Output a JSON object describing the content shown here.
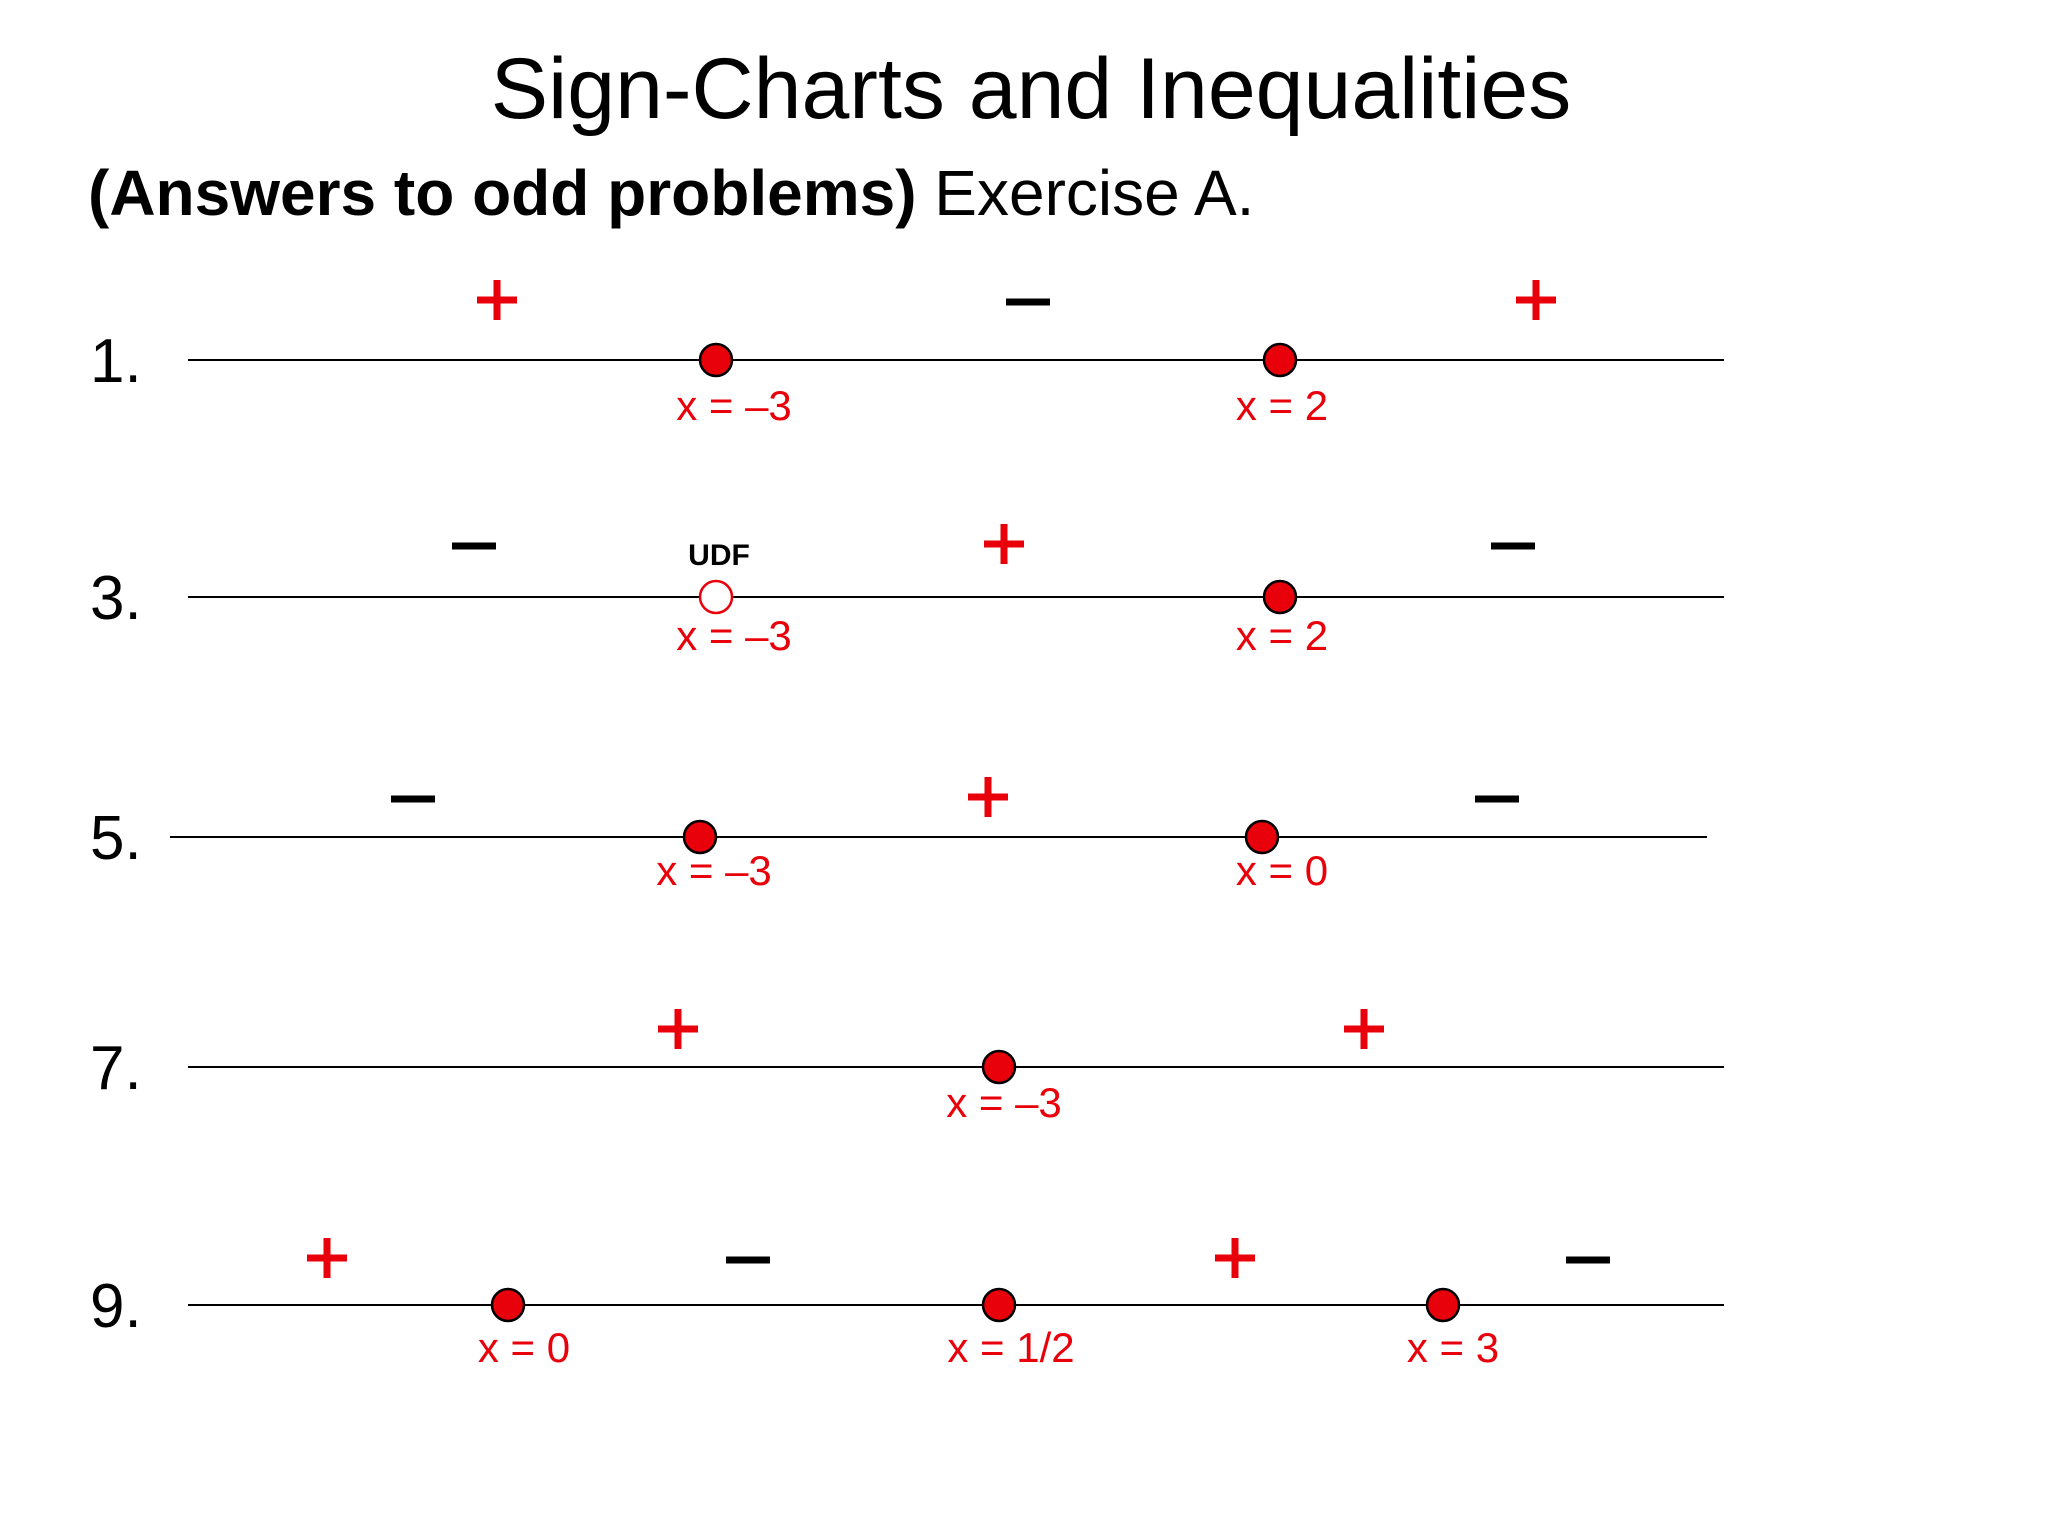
{
  "slide": {
    "title": "Sign-Charts and Inequalities",
    "subtitle_bold": "(Answers to odd problems)",
    "subtitle_rest": " Exercise A."
  },
  "colors": {
    "red": "#e8000b",
    "black": "#000000",
    "line": "#000000"
  },
  "problems": [
    {
      "number": "1.",
      "points": [
        {
          "label": "x = –3",
          "type": "root"
        },
        {
          "label": "x = 2",
          "type": "root"
        }
      ],
      "signs": [
        {
          "text": "+",
          "color": "red"
        },
        {
          "text": "–",
          "color": "black"
        },
        {
          "text": "+",
          "color": "red"
        }
      ]
    },
    {
      "number": "3.",
      "points": [
        {
          "label": "x = –3",
          "type": "udf",
          "tag": "UDF"
        },
        {
          "label": "x = 2",
          "type": "root"
        }
      ],
      "signs": [
        {
          "text": "–",
          "color": "black"
        },
        {
          "text": "+",
          "color": "red"
        },
        {
          "text": "–",
          "color": "black"
        }
      ]
    },
    {
      "number": "5.",
      "points": [
        {
          "label": "x = –3",
          "type": "root"
        },
        {
          "label": "x = 0",
          "type": "root"
        }
      ],
      "signs": [
        {
          "text": "–",
          "color": "black"
        },
        {
          "text": "+",
          "color": "red"
        },
        {
          "text": "–",
          "color": "black"
        }
      ]
    },
    {
      "number": "7.",
      "points": [
        {
          "label": "x = –3",
          "type": "root"
        }
      ],
      "signs": [
        {
          "text": "+",
          "color": "red"
        },
        {
          "text": "+",
          "color": "red"
        }
      ]
    },
    {
      "number": "9.",
      "points": [
        {
          "label": "x = 0",
          "type": "root"
        },
        {
          "label": "x = 1/2",
          "type": "root"
        },
        {
          "label": "x = 3",
          "type": "root"
        }
      ],
      "signs": [
        {
          "text": "+",
          "color": "red"
        },
        {
          "text": "–",
          "color": "black"
        },
        {
          "text": "+",
          "color": "red"
        },
        {
          "text": "–",
          "color": "black"
        }
      ]
    }
  ]
}
